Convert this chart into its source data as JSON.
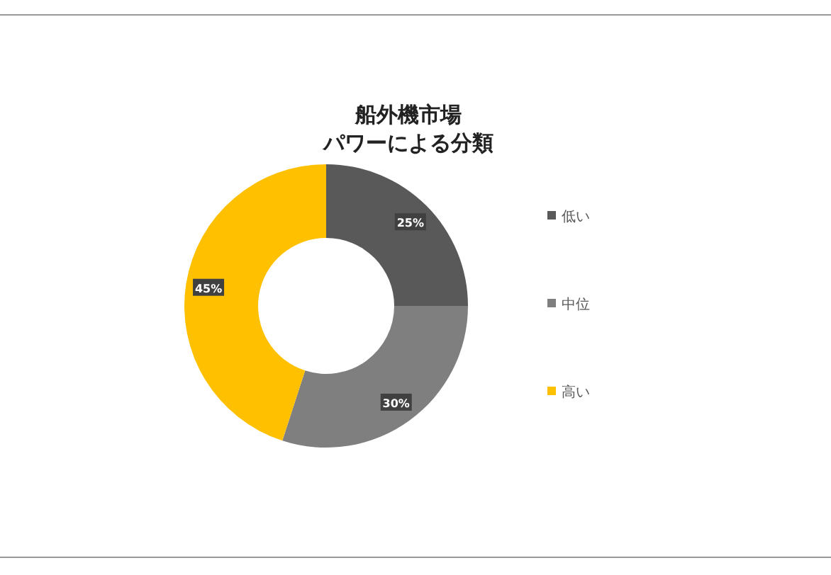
{
  "chart_data": {
    "type": "donut",
    "title": "船外機市場",
    "subtitle": "パワーによる分類",
    "categories": [
      "低い",
      "中位",
      "高い"
    ],
    "values": [
      25,
      30,
      45
    ],
    "value_labels": [
      "25%",
      "30%",
      "45%"
    ],
    "colors": [
      "#595959",
      "#7f7f7f",
      "#ffc000"
    ],
    "legend": "right"
  }
}
